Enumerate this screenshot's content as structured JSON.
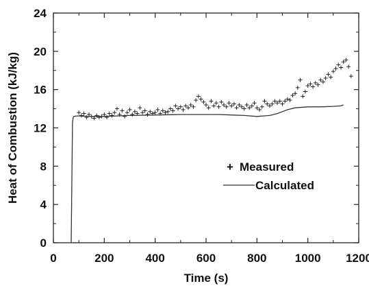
{
  "chart_data": {
    "type": "line",
    "title": "",
    "xlabel": "Time (s)",
    "ylabel": "Heat of Combustion (kJ/kg)",
    "xlim": [
      0,
      1200
    ],
    "ylim": [
      0,
      24
    ],
    "x_ticks": [
      "0",
      "200",
      "400",
      "600",
      "800",
      "1000",
      "1200"
    ],
    "y_ticks": [
      "0",
      "4",
      "8",
      "12",
      "16",
      "20",
      "24"
    ],
    "grid": false,
    "legend_position": "right",
    "series": [
      {
        "name": "Measured",
        "kind": "scatter",
        "marker": "+",
        "x": [
          100,
          110,
          120,
          130,
          140,
          150,
          160,
          170,
          180,
          190,
          200,
          210,
          220,
          230,
          240,
          250,
          260,
          270,
          280,
          290,
          300,
          310,
          320,
          330,
          340,
          350,
          360,
          370,
          380,
          390,
          400,
          410,
          420,
          430,
          440,
          450,
          460,
          470,
          480,
          490,
          500,
          510,
          520,
          530,
          540,
          550,
          560,
          570,
          580,
          590,
          600,
          610,
          620,
          630,
          640,
          650,
          660,
          670,
          680,
          690,
          700,
          710,
          720,
          730,
          740,
          750,
          760,
          770,
          780,
          790,
          800,
          810,
          820,
          830,
          840,
          850,
          860,
          870,
          880,
          890,
          900,
          910,
          920,
          930,
          940,
          950,
          960,
          970,
          980,
          990,
          1000,
          1010,
          1020,
          1030,
          1040,
          1050,
          1060,
          1070,
          1080,
          1090,
          1100,
          1110,
          1120,
          1130,
          1140,
          1150,
          1160,
          1170
        ],
        "y": [
          13.6,
          13.3,
          13.5,
          13.1,
          13.4,
          13.2,
          13.0,
          13.3,
          13.1,
          13.2,
          13.4,
          13.1,
          13.5,
          13.3,
          13.6,
          14.0,
          13.4,
          13.8,
          13.2,
          13.6,
          13.9,
          13.4,
          13.7,
          13.5,
          14.1,
          13.6,
          13.8,
          13.4,
          13.7,
          13.5,
          13.6,
          13.9,
          13.5,
          13.8,
          13.6,
          13.7,
          14.0,
          13.8,
          14.3,
          14.0,
          14.2,
          13.9,
          14.3,
          14.1,
          14.4,
          14.2,
          14.9,
          15.3,
          15.0,
          14.7,
          14.4,
          14.1,
          14.8,
          14.3,
          14.6,
          14.2,
          14.7,
          14.4,
          14.2,
          14.6,
          14.3,
          14.5,
          14.1,
          14.4,
          14.2,
          14.0,
          14.4,
          14.1,
          14.3,
          14.6,
          14.1,
          13.9,
          14.2,
          14.8,
          14.5,
          14.3,
          14.5,
          14.8,
          14.6,
          14.8,
          14.5,
          14.8,
          15.0,
          14.9,
          15.4,
          15.6,
          16.2,
          17.0,
          15.3,
          15.8,
          16.4,
          16.6,
          16.3,
          16.7,
          16.5,
          17.0,
          16.8,
          17.2,
          17.6,
          17.3,
          17.9,
          18.2,
          18.6,
          18.3,
          18.9,
          19.1,
          18.4,
          17.4
        ],
        "color": "#111111"
      },
      {
        "name": "Calculated",
        "kind": "line",
        "x": [
          70,
          75,
          78,
          80,
          90,
          100,
          150,
          200,
          300,
          400,
          500,
          550,
          600,
          650,
          700,
          750,
          800,
          850,
          880,
          900,
          920,
          950,
          1000,
          1050,
          1100,
          1130,
          1140
        ],
        "y": [
          0,
          12.6,
          13.1,
          13.2,
          13.25,
          13.25,
          13.2,
          13.2,
          13.3,
          13.35,
          13.4,
          13.4,
          13.4,
          13.4,
          13.35,
          13.3,
          13.2,
          13.3,
          13.5,
          13.7,
          13.9,
          14.1,
          14.2,
          14.2,
          14.25,
          14.3,
          14.4
        ],
        "color": "#333333"
      }
    ]
  }
}
